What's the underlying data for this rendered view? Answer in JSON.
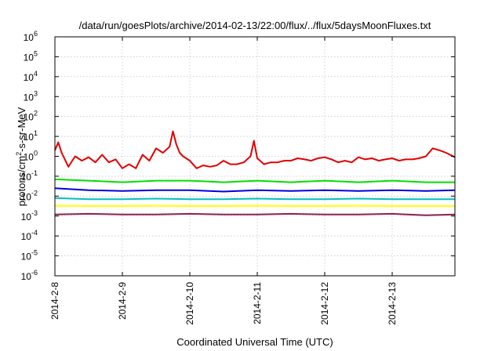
{
  "chart_data": {
    "type": "line",
    "title": "/data/run/goesPlots/archive/2014-02-13/22:00/flux/../flux/5daysMoonFluxes.txt",
    "xlabel": "Coordinated Universal Time (UTC)",
    "ylabel": "protons/cm²-s-sr-MeV",
    "ylabel_parts": {
      "pre": "protons/cm",
      "sup": "2",
      "post": "-s-sr-MeV"
    },
    "yscale": "log",
    "ylim": [
      1e-06,
      1000000
    ],
    "xlim": [
      0,
      5.93
    ],
    "grid": true,
    "x_ticks": [
      {
        "x": 0,
        "label": "2014-2-8"
      },
      {
        "x": 1,
        "label": "2014-2-9"
      },
      {
        "x": 2,
        "label": "2014-2-10"
      },
      {
        "x": 3,
        "label": "2014-2-11"
      },
      {
        "x": 4,
        "label": "2014-2-12"
      },
      {
        "x": 5,
        "label": "2014-2-13"
      }
    ],
    "y_ticks": [
      {
        "value": 1e-06,
        "base": "10",
        "exp": "-6"
      },
      {
        "value": 1e-05,
        "base": "10",
        "exp": "-5"
      },
      {
        "value": 0.0001,
        "base": "10",
        "exp": "-4"
      },
      {
        "value": 0.001,
        "base": "10",
        "exp": "-3"
      },
      {
        "value": 0.01,
        "base": "10",
        "exp": "-2"
      },
      {
        "value": 0.1,
        "base": "10",
        "exp": "-1"
      },
      {
        "value": 1,
        "base": "10",
        "exp": "0"
      },
      {
        "value": 10,
        "base": "10",
        "exp": "1"
      },
      {
        "value": 100,
        "base": "10",
        "exp": "2"
      },
      {
        "value": 1000,
        "base": "10",
        "exp": "3"
      },
      {
        "value": 10000,
        "base": "10",
        "exp": "4"
      },
      {
        "value": 100000,
        "base": "10",
        "exp": "5"
      },
      {
        "value": 1000000,
        "base": "10",
        "exp": "6"
      }
    ],
    "series": [
      {
        "color": "#e00000",
        "x": [
          0,
          0.05,
          0.1,
          0.2,
          0.3,
          0.4,
          0.5,
          0.6,
          0.7,
          0.8,
          0.9,
          1.0,
          1.1,
          1.2,
          1.3,
          1.4,
          1.5,
          1.6,
          1.7,
          1.75,
          1.8,
          1.85,
          1.9,
          2.0,
          2.1,
          2.2,
          2.3,
          2.4,
          2.5,
          2.6,
          2.7,
          2.8,
          2.9,
          2.95,
          3.0,
          3.1,
          3.2,
          3.3,
          3.4,
          3.5,
          3.6,
          3.7,
          3.8,
          3.9,
          4.0,
          4.1,
          4.2,
          4.3,
          4.4,
          4.5,
          4.6,
          4.7,
          4.8,
          4.9,
          5.0,
          5.1,
          5.2,
          5.3,
          5.4,
          5.5,
          5.6,
          5.7,
          5.8,
          5.93
        ],
        "values": [
          2,
          5,
          1.5,
          0.3,
          1.0,
          0.6,
          0.9,
          0.5,
          1.2,
          0.5,
          0.7,
          0.25,
          0.4,
          0.25,
          1.2,
          0.6,
          2.5,
          1.5,
          3,
          18,
          4,
          1.5,
          1.0,
          0.6,
          0.25,
          0.35,
          0.3,
          0.35,
          0.6,
          0.4,
          0.4,
          0.5,
          1.0,
          6,
          0.8,
          0.4,
          0.5,
          0.5,
          0.6,
          0.6,
          0.8,
          0.7,
          0.6,
          0.8,
          0.9,
          0.7,
          0.5,
          0.6,
          0.5,
          0.9,
          0.7,
          0.8,
          0.6,
          0.7,
          0.8,
          0.6,
          0.7,
          0.7,
          0.8,
          1.0,
          2.5,
          2.0,
          1.5,
          0.9
        ]
      },
      {
        "color": "#00e000",
        "x": [
          0,
          0.5,
          1.0,
          1.5,
          2.0,
          2.5,
          3.0,
          3.5,
          4.0,
          4.5,
          5.0,
          5.5,
          5.93
        ],
        "values": [
          0.07,
          0.06,
          0.05,
          0.06,
          0.06,
          0.05,
          0.06,
          0.05,
          0.06,
          0.05,
          0.06,
          0.05,
          0.05
        ]
      },
      {
        "color": "#0000e0",
        "x": [
          0,
          0.5,
          1.0,
          1.5,
          2.0,
          2.5,
          3.0,
          3.5,
          4.0,
          4.5,
          5.0,
          5.5,
          5.93
        ],
        "values": [
          0.025,
          0.02,
          0.018,
          0.02,
          0.02,
          0.017,
          0.02,
          0.018,
          0.02,
          0.018,
          0.02,
          0.018,
          0.02
        ]
      },
      {
        "color": "#00c0c0",
        "x": [
          0,
          0.5,
          1.0,
          1.5,
          2.0,
          2.5,
          3.0,
          3.5,
          4.0,
          4.5,
          5.0,
          5.5,
          5.93
        ],
        "values": [
          0.008,
          0.007,
          0.007,
          0.0075,
          0.007,
          0.007,
          0.0075,
          0.007,
          0.007,
          0.0075,
          0.007,
          0.007,
          0.007
        ]
      },
      {
        "color": "#ffff00",
        "x": [
          0,
          0.5,
          1.0,
          1.5,
          2.0,
          2.5,
          3.0,
          3.5,
          4.0,
          4.5,
          5.0,
          5.5,
          5.93
        ],
        "values": [
          0.0033,
          0.0032,
          0.0032,
          0.0033,
          0.0032,
          0.0032,
          0.0033,
          0.0032,
          0.0032,
          0.0033,
          0.0032,
          0.0032,
          0.0032
        ]
      },
      {
        "color": "#8b2252",
        "x": [
          0,
          0.5,
          1.0,
          1.5,
          2.0,
          2.5,
          3.0,
          3.5,
          4.0,
          4.5,
          5.0,
          5.5,
          5.93
        ],
        "values": [
          0.0012,
          0.0013,
          0.0012,
          0.0012,
          0.0013,
          0.0012,
          0.0012,
          0.0013,
          0.0012,
          0.0012,
          0.0013,
          0.0011,
          0.0012
        ]
      }
    ]
  }
}
